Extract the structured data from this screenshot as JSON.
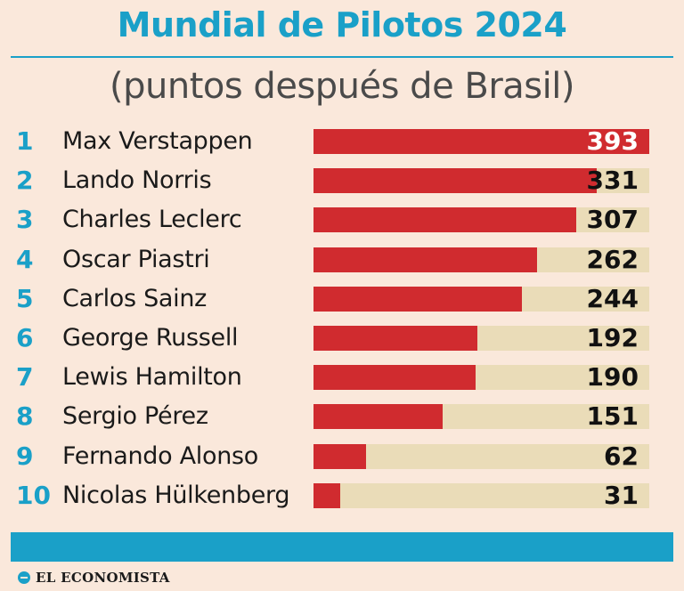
{
  "colors": {
    "accent": "#1aa0c8",
    "bar_fill": "#d02b2f",
    "bar_track": "#eadcb8",
    "background": "#fae8db"
  },
  "brand": {
    "logo_text": "EL ECONOMISTA"
  },
  "chart_data": {
    "type": "bar",
    "orientation": "horizontal",
    "title": "Mundial de Pilotos 2024",
    "subtitle": "(puntos después de Brasil)",
    "xlim": [
      0,
      393
    ],
    "ranks": [
      "1",
      "2",
      "3",
      "4",
      "5",
      "6",
      "7",
      "8",
      "9",
      "10"
    ],
    "categories": [
      "Max Verstappen",
      "Lando Norris",
      "Charles Leclerc",
      "Oscar Piastri",
      "Carlos Sainz",
      "George Russell",
      "Lewis Hamilton",
      "Sergio Pérez",
      "Fernando Alonso",
      "Nicolas Hülkenberg"
    ],
    "values": [
      393,
      331,
      307,
      262,
      244,
      192,
      190,
      151,
      62,
      31
    ]
  }
}
